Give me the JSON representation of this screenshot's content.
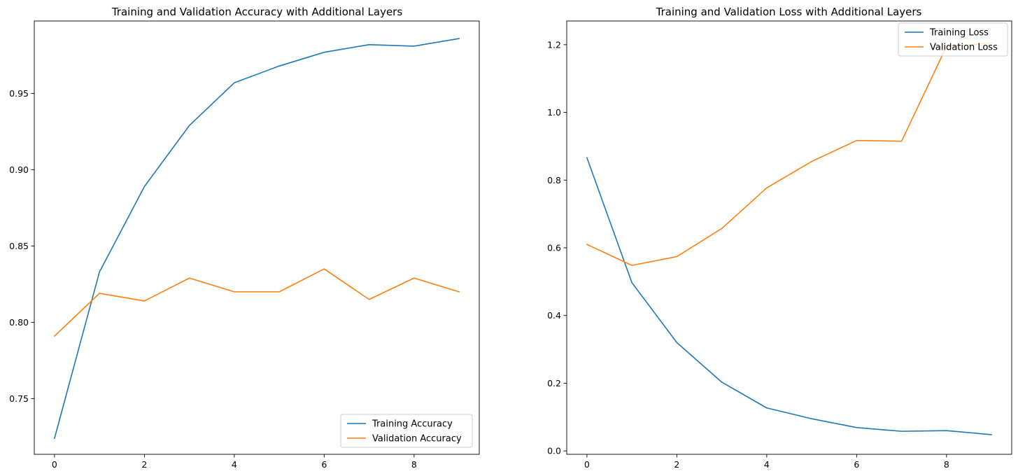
{
  "chart_data": [
    {
      "type": "line",
      "title": "Training and Validation Accuracy with Additional Layers",
      "xlabel": "",
      "ylabel": "",
      "x": [
        0,
        1,
        2,
        3,
        4,
        5,
        6,
        7,
        8,
        9
      ],
      "xlim": [
        -0.45,
        9.45
      ],
      "ylim": [
        0.7135,
        0.9975
      ],
      "xticks": [
        0,
        2,
        4,
        6,
        8
      ],
      "xtick_labels": [
        "0",
        "2",
        "4",
        "6",
        "8"
      ],
      "yticks": [
        0.75,
        0.8,
        0.85,
        0.9,
        0.95
      ],
      "ytick_labels": [
        "0.75",
        "0.80",
        "0.85",
        "0.90",
        "0.95"
      ],
      "grid": false,
      "legend_position": "lower-right",
      "series": [
        {
          "name": "Training Accuracy",
          "color": "#1f77b4",
          "values": [
            0.724,
            0.833,
            0.889,
            0.929,
            0.957,
            0.968,
            0.977,
            0.982,
            0.981,
            0.986
          ]
        },
        {
          "name": "Validation Accuracy",
          "color": "#ff7f0e",
          "values": [
            0.791,
            0.819,
            0.814,
            0.829,
            0.82,
            0.82,
            0.835,
            0.815,
            0.829,
            0.82
          ]
        }
      ]
    },
    {
      "type": "line",
      "title": "Training and Validation Loss with Additional Layers",
      "xlabel": "",
      "ylabel": "",
      "x": [
        0,
        1,
        2,
        3,
        4,
        5,
        6,
        7,
        8,
        9
      ],
      "xlim": [
        -0.45,
        9.45
      ],
      "ylim": [
        -0.01,
        1.27
      ],
      "xticks": [
        0,
        2,
        4,
        6,
        8
      ],
      "xtick_labels": [
        "0",
        "2",
        "4",
        "6",
        "8"
      ],
      "yticks": [
        0.0,
        0.2,
        0.4,
        0.6,
        0.8,
        1.0,
        1.2
      ],
      "ytick_labels": [
        "0.0",
        "0.2",
        "0.4",
        "0.6",
        "0.8",
        "1.0",
        "1.2"
      ],
      "grid": false,
      "legend_position": "upper-right",
      "series": [
        {
          "name": "Training Loss",
          "color": "#1f77b4",
          "values": [
            0.866,
            0.497,
            0.32,
            0.203,
            0.127,
            0.095,
            0.069,
            0.058,
            0.06,
            0.048
          ]
        },
        {
          "name": "Validation Loss",
          "color": "#ff7f0e",
          "values": [
            0.61,
            0.548,
            0.574,
            0.657,
            0.777,
            0.855,
            0.917,
            0.915,
            1.195,
            1.205
          ]
        }
      ]
    }
  ]
}
